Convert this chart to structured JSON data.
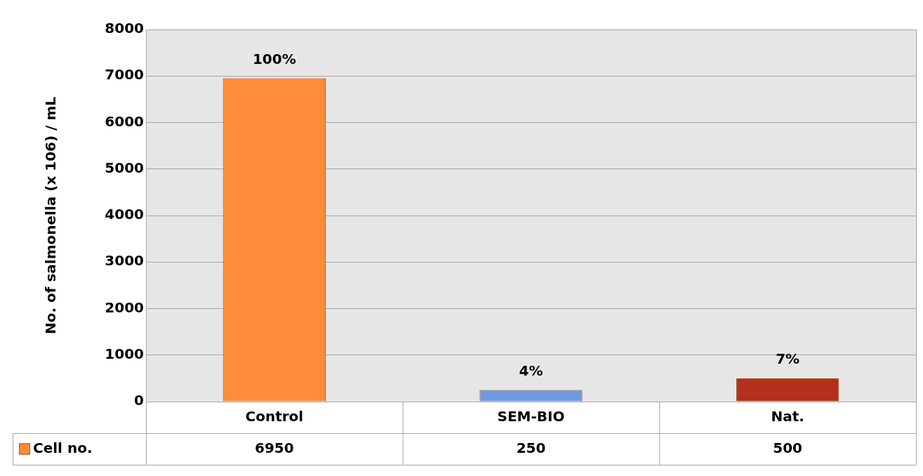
{
  "chart_data": {
    "type": "bar",
    "ylabel": "No. of salmonella (x 106) / mL",
    "categories": [
      "Control",
      "SEM-BIO",
      "Nat."
    ],
    "series": [
      {
        "name": "Cell no.",
        "color": "#ff8c38",
        "colors": [
          "#ff8c38",
          "#6f9ae0",
          "#b5301d"
        ],
        "values": [
          6950,
          250,
          500
        ],
        "value_labels": [
          "6950",
          "250",
          "500"
        ]
      }
    ],
    "annotations": [
      {
        "text": "100%",
        "x": "Control",
        "y": 6950
      },
      {
        "text": "4%",
        "x": "SEM-BIO",
        "y": 250
      },
      {
        "text": "7%",
        "x": "Nat.",
        "y": 500
      }
    ],
    "ylim": [
      0,
      8000
    ],
    "yticks": [
      0,
      1000,
      2000,
      3000,
      4000,
      5000,
      6000,
      7000,
      8000
    ],
    "grid": "y",
    "legend": "bottom left"
  }
}
